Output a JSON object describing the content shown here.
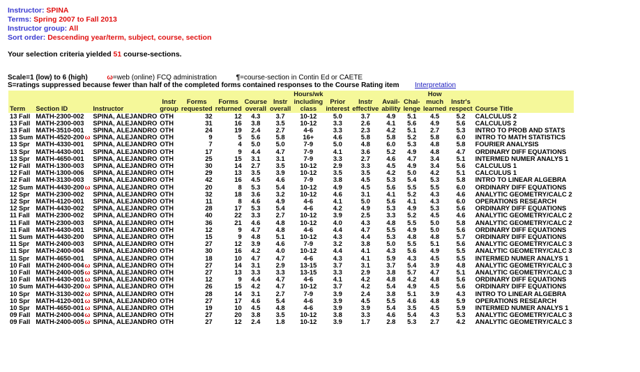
{
  "header": {
    "instructor_label": "Instructor:",
    "instructor_value": "SPINA",
    "terms_label": "Terms:",
    "terms_value": "Spring 2007 to Fall 2013",
    "group_label": "Instructor group:",
    "group_value": "All",
    "sort_label": "Sort order:",
    "sort_value": "Descending year/term, subject, course, section"
  },
  "selection": {
    "prefix": "Your selection criteria yielded",
    "count": "51",
    "suffix": "course-sections."
  },
  "legend": {
    "scale": "Scale=1 (low) to 6 (high)",
    "web_symbol": "ω",
    "web_text": "=web (online) FCQ administration",
    "contin_symbol": "¶",
    "contin_text": "=course-section in Contin Ed or CAETE",
    "suppressed": "S=ratings suppressed because fewer than half of the completed forms contained responses to the Course Rating item",
    "interpretation_link": "Interpretation"
  },
  "columns": [
    {
      "l1": "",
      "l2": "",
      "l3": "Term"
    },
    {
      "l1": "",
      "l2": "",
      "l3": "Section ID"
    },
    {
      "l1": "",
      "l2": "",
      "l3": "Instructor"
    },
    {
      "l1": "",
      "l2": "Instr",
      "l3": "group"
    },
    {
      "l1": "",
      "l2": "Forms",
      "l3": "requested"
    },
    {
      "l1": "",
      "l2": "Forms",
      "l3": "returned"
    },
    {
      "l1": "",
      "l2": "Course",
      "l3": "overall"
    },
    {
      "l1": "",
      "l2": "Instr",
      "l3": "overall"
    },
    {
      "l1": "Hours/wk",
      "l2": "including",
      "l3": "class"
    },
    {
      "l1": "",
      "l2": "Prior",
      "l3": "interest"
    },
    {
      "l1": "",
      "l2": "Instr",
      "l3": "effective"
    },
    {
      "l1": "",
      "l2": "Avail-",
      "l3": "ability"
    },
    {
      "l1": "",
      "l2": "Chal-",
      "l3": "lenge"
    },
    {
      "l1": "How",
      "l2": "much",
      "l3": "learned"
    },
    {
      "l1": "",
      "l2": "Instr's",
      "l3": "respect"
    },
    {
      "l1": "",
      "l2": "",
      "l3": "Course Title"
    }
  ],
  "web_marker": "ω",
  "rows": [
    {
      "term": "13 Fall",
      "section": "MATH-2300-002",
      "web": false,
      "instructor": "SPINA, ALEJANDRO",
      "group": "OTH",
      "req": "32",
      "ret": "12",
      "course": "4.3",
      "instr": "3.7",
      "hours": "10-12",
      "prior": "5.0",
      "effective": "3.7",
      "avail": "4.9",
      "chal": "5.1",
      "learned": "4.5",
      "respect": "5.2",
      "title": "CALCULUS 2"
    },
    {
      "term": "13 Fall",
      "section": "MATH-2300-003",
      "web": false,
      "instructor": "SPINA, ALEJANDRO",
      "group": "OTH",
      "req": "31",
      "ret": "16",
      "course": "3.8",
      "instr": "3.5",
      "hours": "10-12",
      "prior": "3.3",
      "effective": "2.6",
      "avail": "4.1",
      "chal": "5.6",
      "learned": "4.9",
      "respect": "5.6",
      "title": "CALCULUS 2"
    },
    {
      "term": "13 Fall",
      "section": "MATH-3510-001",
      "web": false,
      "instructor": "SPINA, ALEJANDRO",
      "group": "OTH",
      "req": "24",
      "ret": "19",
      "course": "2.4",
      "instr": "2.7",
      "hours": "4-6",
      "prior": "3.3",
      "effective": "2.3",
      "avail": "4.2",
      "chal": "5.1",
      "learned": "2.7",
      "respect": "5.3",
      "title": "INTRO TO PROB AND STATS"
    },
    {
      "term": "13 Sum",
      "section": "MATH-4520-200",
      "web": true,
      "instructor": "SPINA, ALEJANDRO",
      "group": "OTH",
      "req": "9",
      "ret": "5",
      "course": "5.6",
      "instr": "5.8",
      "hours": "16+",
      "prior": "4.6",
      "effective": "5.8",
      "avail": "5.8",
      "chal": "5.2",
      "learned": "5.8",
      "respect": "6.0",
      "title": "INTRO TO MATH STATISTICS"
    },
    {
      "term": "13 Spr",
      "section": "MATH-4330-001",
      "web": false,
      "instructor": "SPINA, ALEJANDRO",
      "group": "OTH",
      "req": "7",
      "ret": "4",
      "course": "5.0",
      "instr": "5.0",
      "hours": "7-9",
      "prior": "5.0",
      "effective": "4.8",
      "avail": "6.0",
      "chal": "5.3",
      "learned": "4.8",
      "respect": "5.8",
      "title": "FOURIER ANALYSIS"
    },
    {
      "term": "13 Spr",
      "section": "MATH-4430-001",
      "web": false,
      "instructor": "SPINA, ALEJANDRO",
      "group": "OTH",
      "req": "17",
      "ret": "9",
      "course": "4.4",
      "instr": "4.7",
      "hours": "7-9",
      "prior": "4.1",
      "effective": "3.6",
      "avail": "5.2",
      "chal": "4.9",
      "learned": "4.8",
      "respect": "4.7",
      "title": "ORDINARY DIFF EQUATIONS"
    },
    {
      "term": "13 Spr",
      "section": "MATH-4650-001",
      "web": false,
      "instructor": "SPINA, ALEJANDRO",
      "group": "OTH",
      "req": "25",
      "ret": "15",
      "course": "3.1",
      "instr": "3.1",
      "hours": "7-9",
      "prior": "3.3",
      "effective": "2.7",
      "avail": "4.6",
      "chal": "4.7",
      "learned": "3.4",
      "respect": "5.1",
      "title": "INTERMED NUMER ANALYS 1"
    },
    {
      "term": "12 Fall",
      "section": "MATH-1300-003",
      "web": false,
      "instructor": "SPINA, ALEJANDRO",
      "group": "OTH",
      "req": "30",
      "ret": "14",
      "course": "2.7",
      "instr": "3.5",
      "hours": "10-12",
      "prior": "2.9",
      "effective": "3.3",
      "avail": "4.5",
      "chal": "4.9",
      "learned": "3.4",
      "respect": "5.6",
      "title": "CALCULUS 1"
    },
    {
      "term": "12 Fall",
      "section": "MATH-1300-006",
      "web": false,
      "instructor": "SPINA, ALEJANDRO",
      "group": "OTH",
      "req": "29",
      "ret": "13",
      "course": "3.5",
      "instr": "3.9",
      "hours": "10-12",
      "prior": "3.5",
      "effective": "3.5",
      "avail": "4.2",
      "chal": "5.0",
      "learned": "4.2",
      "respect": "5.1",
      "title": "CALCULUS 1"
    },
    {
      "term": "12 Fall",
      "section": "MATH-3130-003",
      "web": false,
      "instructor": "SPINA, ALEJANDRO",
      "group": "OTH",
      "req": "42",
      "ret": "16",
      "course": "4.5",
      "instr": "4.6",
      "hours": "7-9",
      "prior": "3.8",
      "effective": "4.5",
      "avail": "5.3",
      "chal": "5.4",
      "learned": "5.3",
      "respect": "5.8",
      "title": "INTRO TO LINEAR ALGEBRA"
    },
    {
      "term": "12 Sum",
      "section": "MATH-4430-200",
      "web": true,
      "instructor": "SPINA, ALEJANDRO",
      "group": "OTH",
      "req": "20",
      "ret": "8",
      "course": "5.3",
      "instr": "5.4",
      "hours": "10-12",
      "prior": "4.9",
      "effective": "4.5",
      "avail": "5.6",
      "chal": "5.5",
      "learned": "5.5",
      "respect": "6.0",
      "title": "ORDINARY DIFF EQUATIONS"
    },
    {
      "term": "12 Spr",
      "section": "MATH-2300-002",
      "web": false,
      "instructor": "SPINA, ALEJANDRO",
      "group": "OTH",
      "req": "32",
      "ret": "18",
      "course": "3.6",
      "instr": "3.2",
      "hours": "10-12",
      "prior": "4.6",
      "effective": "3.1",
      "avail": "4.1",
      "chal": "5.2",
      "learned": "4.3",
      "respect": "4.6",
      "title": "ANALYTIC GEOMETRY/CALC 2"
    },
    {
      "term": "12 Spr",
      "section": "MATH-4120-001",
      "web": false,
      "instructor": "SPINA, ALEJANDRO",
      "group": "OTH",
      "req": "11",
      "ret": "8",
      "course": "4.6",
      "instr": "4.9",
      "hours": "4-6",
      "prior": "4.1",
      "effective": "5.0",
      "avail": "5.6",
      "chal": "4.1",
      "learned": "4.3",
      "respect": "6.0",
      "title": "OPERATIONS RESEARCH"
    },
    {
      "term": "12 Spr",
      "section": "MATH-4430-002",
      "web": false,
      "instructor": "SPINA, ALEJANDRO",
      "group": "OTH",
      "req": "28",
      "ret": "17",
      "course": "5.3",
      "instr": "5.4",
      "hours": "4-6",
      "prior": "4.2",
      "effective": "4.9",
      "avail": "5.3",
      "chal": "4.9",
      "learned": "5.3",
      "respect": "5.6",
      "title": "ORDINARY DIFF EQUATIONS"
    },
    {
      "term": "11 Fall",
      "section": "MATH-2300-002",
      "web": false,
      "instructor": "SPINA, ALEJANDRO",
      "group": "OTH",
      "req": "40",
      "ret": "22",
      "course": "3.3",
      "instr": "2.7",
      "hours": "10-12",
      "prior": "3.9",
      "effective": "2.5",
      "avail": "3.3",
      "chal": "5.2",
      "learned": "4.5",
      "respect": "4.6",
      "title": "ANALYTIC GEOMETRY/CALC 2"
    },
    {
      "term": "11 Fall",
      "section": "MATH-2300-003",
      "web": false,
      "instructor": "SPINA, ALEJANDRO",
      "group": "OTH",
      "req": "36",
      "ret": "21",
      "course": "4.6",
      "instr": "4.8",
      "hours": "10-12",
      "prior": "4.0",
      "effective": "4.3",
      "avail": "4.8",
      "chal": "5.5",
      "learned": "5.0",
      "respect": "5.8",
      "title": "ANALYTIC GEOMETRY/CALC 2"
    },
    {
      "term": "11 Fall",
      "section": "MATH-4430-001",
      "web": false,
      "instructor": "SPINA, ALEJANDRO",
      "group": "OTH",
      "req": "12",
      "ret": "9",
      "course": "4.7",
      "instr": "4.8",
      "hours": "4-6",
      "prior": "4.4",
      "effective": "4.7",
      "avail": "5.5",
      "chal": "4.9",
      "learned": "5.0",
      "respect": "5.6",
      "title": "ORDINARY DIFF EQUATIONS"
    },
    {
      "term": "11 Sum",
      "section": "MATH-4430-200",
      "web": false,
      "instructor": "SPINA, ALEJANDRO",
      "group": "OTH",
      "req": "15",
      "ret": "9",
      "course": "4.8",
      "instr": "5.1",
      "hours": "10-12",
      "prior": "4.3",
      "effective": "4.4",
      "avail": "5.3",
      "chal": "4.8",
      "learned": "4.8",
      "respect": "5.7",
      "title": "ORDINARY DIFF EQUATIONS"
    },
    {
      "term": "11 Spr",
      "section": "MATH-2400-003",
      "web": false,
      "instructor": "SPINA, ALEJANDRO",
      "group": "OTH",
      "req": "27",
      "ret": "12",
      "course": "3.9",
      "instr": "4.6",
      "hours": "7-9",
      "prior": "3.2",
      "effective": "3.8",
      "avail": "5.0",
      "chal": "5.5",
      "learned": "5.1",
      "respect": "5.6",
      "title": "ANALYTIC GEOMETRY/CALC 3"
    },
    {
      "term": "11 Spr",
      "section": "MATH-2400-004",
      "web": false,
      "instructor": "SPINA, ALEJANDRO",
      "group": "OTH",
      "req": "30",
      "ret": "16",
      "course": "4.2",
      "instr": "4.0",
      "hours": "10-12",
      "prior": "4.4",
      "effective": "4.1",
      "avail": "4.3",
      "chal": "5.6",
      "learned": "4.9",
      "respect": "5.5",
      "title": "ANALYTIC GEOMETRY/CALC 3"
    },
    {
      "term": "11 Spr",
      "section": "MATH-4650-001",
      "web": false,
      "instructor": "SPINA, ALEJANDRO",
      "group": "OTH",
      "req": "18",
      "ret": "10",
      "course": "4.7",
      "instr": "4.7",
      "hours": "4-6",
      "prior": "4.3",
      "effective": "4.1",
      "avail": "5.9",
      "chal": "4.3",
      "learned": "4.5",
      "respect": "5.5",
      "title": "INTERMED NUMER ANALYS 1"
    },
    {
      "term": "10 Fall",
      "section": "MATH-2400-004",
      "web": true,
      "instructor": "SPINA, ALEJANDRO",
      "group": "OTH",
      "req": "27",
      "ret": "14",
      "course": "3.1",
      "instr": "2.9",
      "hours": "13-15",
      "prior": "3.7",
      "effective": "3.1",
      "avail": "3.7",
      "chal": "5.4",
      "learned": "3.9",
      "respect": "4.8",
      "title": "ANALYTIC GEOMETRY/CALC 3"
    },
    {
      "term": "10 Fall",
      "section": "MATH-2400-005",
      "web": true,
      "instructor": "SPINA, ALEJANDRO",
      "group": "OTH",
      "req": "27",
      "ret": "13",
      "course": "3.3",
      "instr": "3.3",
      "hours": "13-15",
      "prior": "3.3",
      "effective": "2.9",
      "avail": "3.8",
      "chal": "5.7",
      "learned": "4.7",
      "respect": "5.1",
      "title": "ANALYTIC GEOMETRY/CALC 3"
    },
    {
      "term": "10 Fall",
      "section": "MATH-4430-001",
      "web": true,
      "instructor": "SPINA, ALEJANDRO",
      "group": "OTH",
      "req": "12",
      "ret": "9",
      "course": "4.4",
      "instr": "4.7",
      "hours": "4-6",
      "prior": "4.1",
      "effective": "4.2",
      "avail": "4.8",
      "chal": "4.2",
      "learned": "4.8",
      "respect": "5.6",
      "title": "ORDINARY DIFF EQUATIONS"
    },
    {
      "term": "10 Sum",
      "section": "MATH-4430-200",
      "web": true,
      "instructor": "SPINA, ALEJANDRO",
      "group": "OTH",
      "req": "26",
      "ret": "15",
      "course": "4.2",
      "instr": "4.7",
      "hours": "10-12",
      "prior": "3.7",
      "effective": "4.2",
      "avail": "5.4",
      "chal": "4.9",
      "learned": "4.5",
      "respect": "5.6",
      "title": "ORDINARY DIFF EQUATIONS"
    },
    {
      "term": "10 Spr",
      "section": "MATH-3130-002",
      "web": true,
      "instructor": "SPINA, ALEJANDRO",
      "group": "OTH",
      "req": "28",
      "ret": "14",
      "course": "3.1",
      "instr": "2.7",
      "hours": "7-9",
      "prior": "3.9",
      "effective": "2.4",
      "avail": "3.8",
      "chal": "5.1",
      "learned": "3.9",
      "respect": "4.3",
      "title": "INTRO TO LINEAR ALGEBRA"
    },
    {
      "term": "10 Spr",
      "section": "MATH-4120-001",
      "web": true,
      "instructor": "SPINA, ALEJANDRO",
      "group": "OTH",
      "req": "27",
      "ret": "17",
      "course": "4.6",
      "instr": "5.4",
      "hours": "4-6",
      "prior": "3.9",
      "effective": "4.5",
      "avail": "5.5",
      "chal": "4.6",
      "learned": "4.8",
      "respect": "5.9",
      "title": "OPERATIONS RESEARCH"
    },
    {
      "term": "10 Spr",
      "section": "MATH-4650-001",
      "web": true,
      "instructor": "SPINA, ALEJANDRO",
      "group": "OTH",
      "req": "19",
      "ret": "10",
      "course": "4.5",
      "instr": "4.8",
      "hours": "4-6",
      "prior": "3.9",
      "effective": "3.9",
      "avail": "5.4",
      "chal": "3.5",
      "learned": "4.5",
      "respect": "5.9",
      "title": "INTERMED NUMER ANALYS 1"
    },
    {
      "term": "09 Fall",
      "section": "MATH-2400-004",
      "web": true,
      "instructor": "SPINA, ALEJANDRO",
      "group": "OTH",
      "req": "27",
      "ret": "20",
      "course": "3.8",
      "instr": "3.5",
      "hours": "10-12",
      "prior": "3.8",
      "effective": "3.3",
      "avail": "4.6",
      "chal": "5.4",
      "learned": "4.3",
      "respect": "5.3",
      "title": "ANALYTIC GEOMETRY/CALC 3"
    },
    {
      "term": "09 Fall",
      "section": "MATH-2400-005",
      "web": true,
      "instructor": "SPINA, ALEJANDRO",
      "group": "OTH",
      "req": "27",
      "ret": "12",
      "course": "2.4",
      "instr": "1.8",
      "hours": "10-12",
      "prior": "3.9",
      "effective": "1.7",
      "avail": "2.8",
      "chal": "5.3",
      "learned": "2.7",
      "respect": "4.2",
      "title": "ANALYTIC GEOMETRY/CALC 3"
    }
  ]
}
